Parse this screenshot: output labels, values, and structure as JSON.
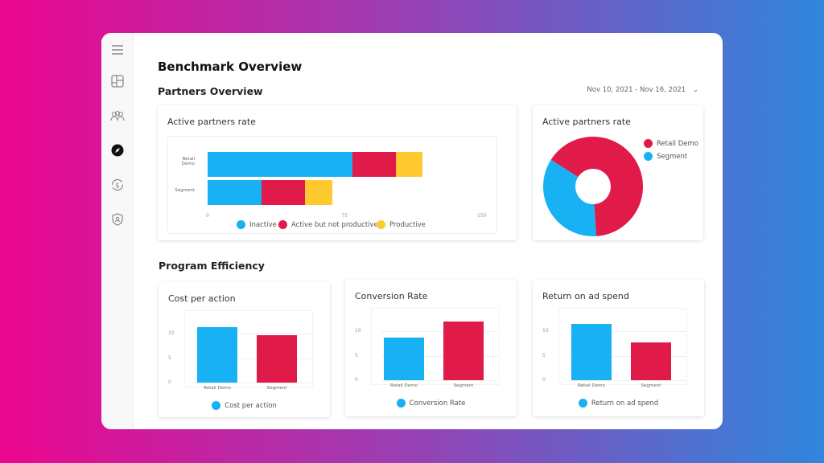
{
  "colors": {
    "blue": "#17b1f4",
    "red": "#e01b49",
    "yellow": "#ffca30"
  },
  "sidebar": {
    "icons": [
      "menu-icon",
      "layout-icon",
      "users-icon",
      "compass-icon",
      "dollar-refresh-icon",
      "shield-user-icon"
    ]
  },
  "header": {
    "title": "Benchmark Overview",
    "section1": "Partners Overview",
    "date_range": "Nov 10, 2021 - Nov 16, 2021",
    "section2": "Program Efficiency"
  },
  "chart_data": [
    {
      "type": "bar",
      "orientation": "horizontal",
      "stacked": true,
      "title": "Active partners rate",
      "categories": [
        "Retail Demo",
        "Segment"
      ],
      "xlim": [
        0,
        150
      ],
      "xticks": [
        "0",
        "75",
        "150"
      ],
      "series": [
        {
          "name": "Inactive",
          "values": [
            80,
            30
          ]
        },
        {
          "name": "Active but not productive",
          "values": [
            24,
            24
          ]
        },
        {
          "name": "Productive",
          "values": [
            15,
            15
          ]
        }
      ],
      "legend": "bottom"
    },
    {
      "type": "pie",
      "donut": true,
      "title": "Active partners rate",
      "categories": [
        "Retail Demo",
        "Segment"
      ],
      "values": [
        65,
        35
      ],
      "legend": "right"
    },
    {
      "type": "bar",
      "title": "Cost per action",
      "categories": [
        "Retail Demo",
        "Segment"
      ],
      "series": [
        {
          "name": "Cost per action",
          "values": [
            11.3,
            9.7
          ]
        }
      ],
      "ylim": [
        0,
        13
      ],
      "yticks": [
        "0",
        "5",
        "10"
      ],
      "legend": "bottom"
    },
    {
      "type": "bar",
      "title": "Conversion Rate",
      "categories": [
        "Retail Demo",
        "Segment"
      ],
      "series": [
        {
          "name": "Conversion Rate",
          "values": [
            8.7,
            12
          ]
        }
      ],
      "ylim": [
        0,
        13
      ],
      "yticks": [
        "0",
        "5",
        "10"
      ],
      "legend": "bottom"
    },
    {
      "type": "bar",
      "title": "Return on ad spend",
      "categories": [
        "Retail Demo",
        "Segment"
      ],
      "series": [
        {
          "name": "Return on ad spend",
          "values": [
            11.5,
            7.7
          ]
        }
      ],
      "ylim": [
        0,
        13
      ],
      "yticks": [
        "0",
        "5",
        "10"
      ],
      "legend": "bottom"
    }
  ]
}
